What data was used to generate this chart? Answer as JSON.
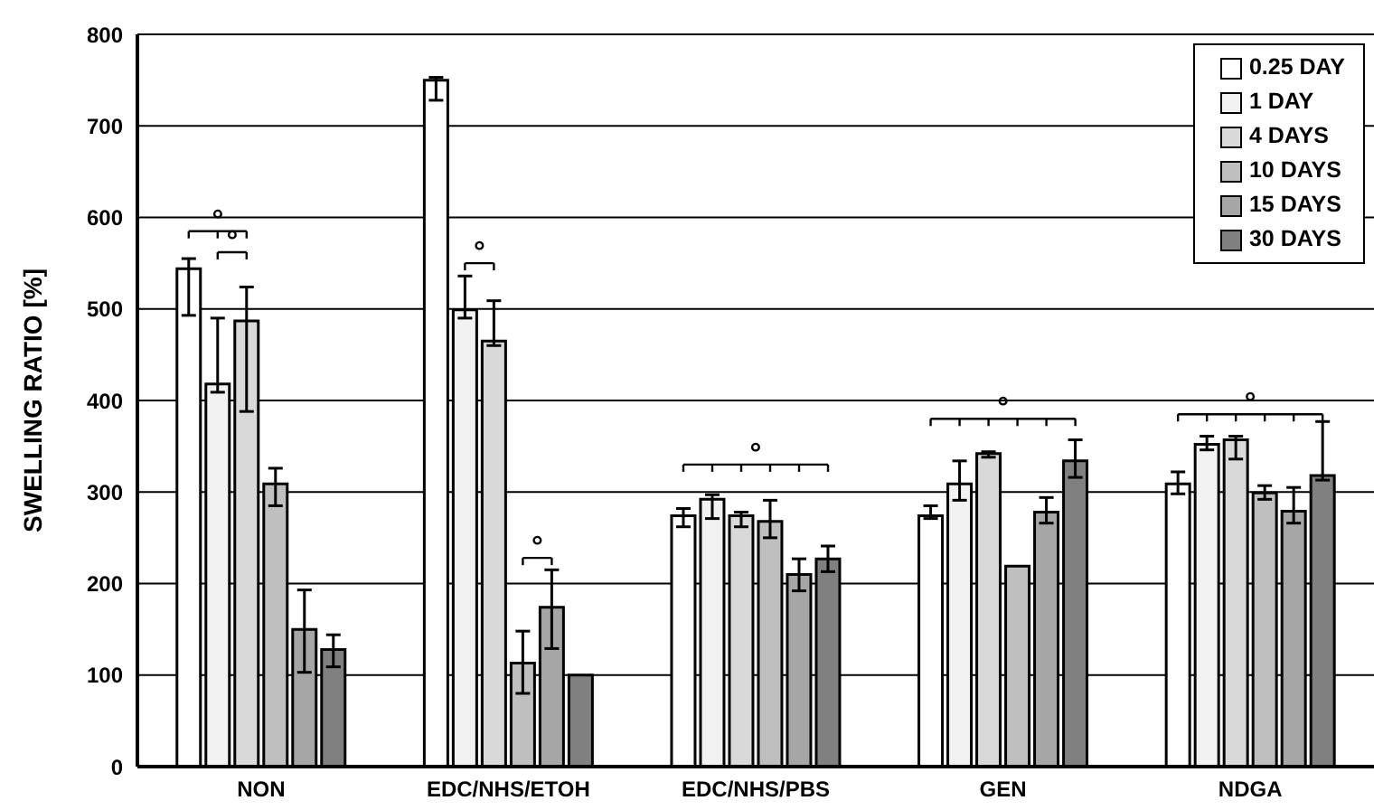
{
  "chart_data": {
    "type": "bar",
    "ylabel": "SWELLING RATIO [%]",
    "categories": [
      "NON",
      "EDC/NHS/ETOH",
      "EDC/NHS/PBS",
      "GEN",
      "NDGA"
    ],
    "series": [
      {
        "name": "0.25 DAY",
        "color": "#ffffff",
        "values": [
          544,
          750,
          274,
          274,
          309
        ],
        "errors": [
          [
            493,
            555
          ],
          [
            728,
            753
          ],
          [
            262,
            282
          ],
          [
            271,
            285
          ],
          [
            298,
            322
          ]
        ]
      },
      {
        "name": "1 DAY",
        "color": "#f2f2f2",
        "values": [
          418,
          499,
          292,
          309,
          352
        ],
        "errors": [
          [
            409,
            490
          ],
          [
            490,
            536
          ],
          [
            271,
            297
          ],
          [
            291,
            334
          ],
          [
            346,
            361
          ]
        ]
      },
      {
        "name": "4 DAYS",
        "color": "#d9d9d9",
        "values": [
          487,
          465,
          274,
          342,
          357
        ],
        "errors": [
          [
            388,
            524
          ],
          [
            460,
            509
          ],
          [
            262,
            278
          ],
          [
            338,
            344
          ],
          [
            336,
            361
          ]
        ]
      },
      {
        "name": "10 DAYS",
        "color": "#bfbfbf",
        "values": [
          309,
          113,
          268,
          219,
          299
        ],
        "errors": [
          [
            285,
            326
          ],
          [
            80,
            148
          ],
          [
            250,
            291
          ],
          null,
          [
            292,
            307
          ]
        ]
      },
      {
        "name": "15 DAYS",
        "color": "#a6a6a6",
        "values": [
          150,
          174,
          210,
          278,
          279
        ],
        "errors": [
          [
            103,
            193
          ],
          [
            129,
            215
          ],
          [
            192,
            227
          ],
          [
            266,
            294
          ],
          [
            266,
            305
          ]
        ]
      },
      {
        "name": "30 DAYS",
        "color": "#808080",
        "values": [
          128,
          100,
          227,
          334,
          318
        ],
        "errors": [
          [
            109,
            144
          ],
          null,
          [
            213,
            241
          ],
          [
            316,
            357
          ],
          [
            313,
            377
          ]
        ]
      }
    ],
    "ylim": [
      0,
      800
    ],
    "yticks": [
      0,
      100,
      200,
      300,
      400,
      500,
      600,
      700,
      800
    ],
    "grid": "y",
    "legend": "top right",
    "annotations": [
      "°",
      "°",
      "°",
      "°",
      "°",
      "°",
      "°"
    ]
  }
}
